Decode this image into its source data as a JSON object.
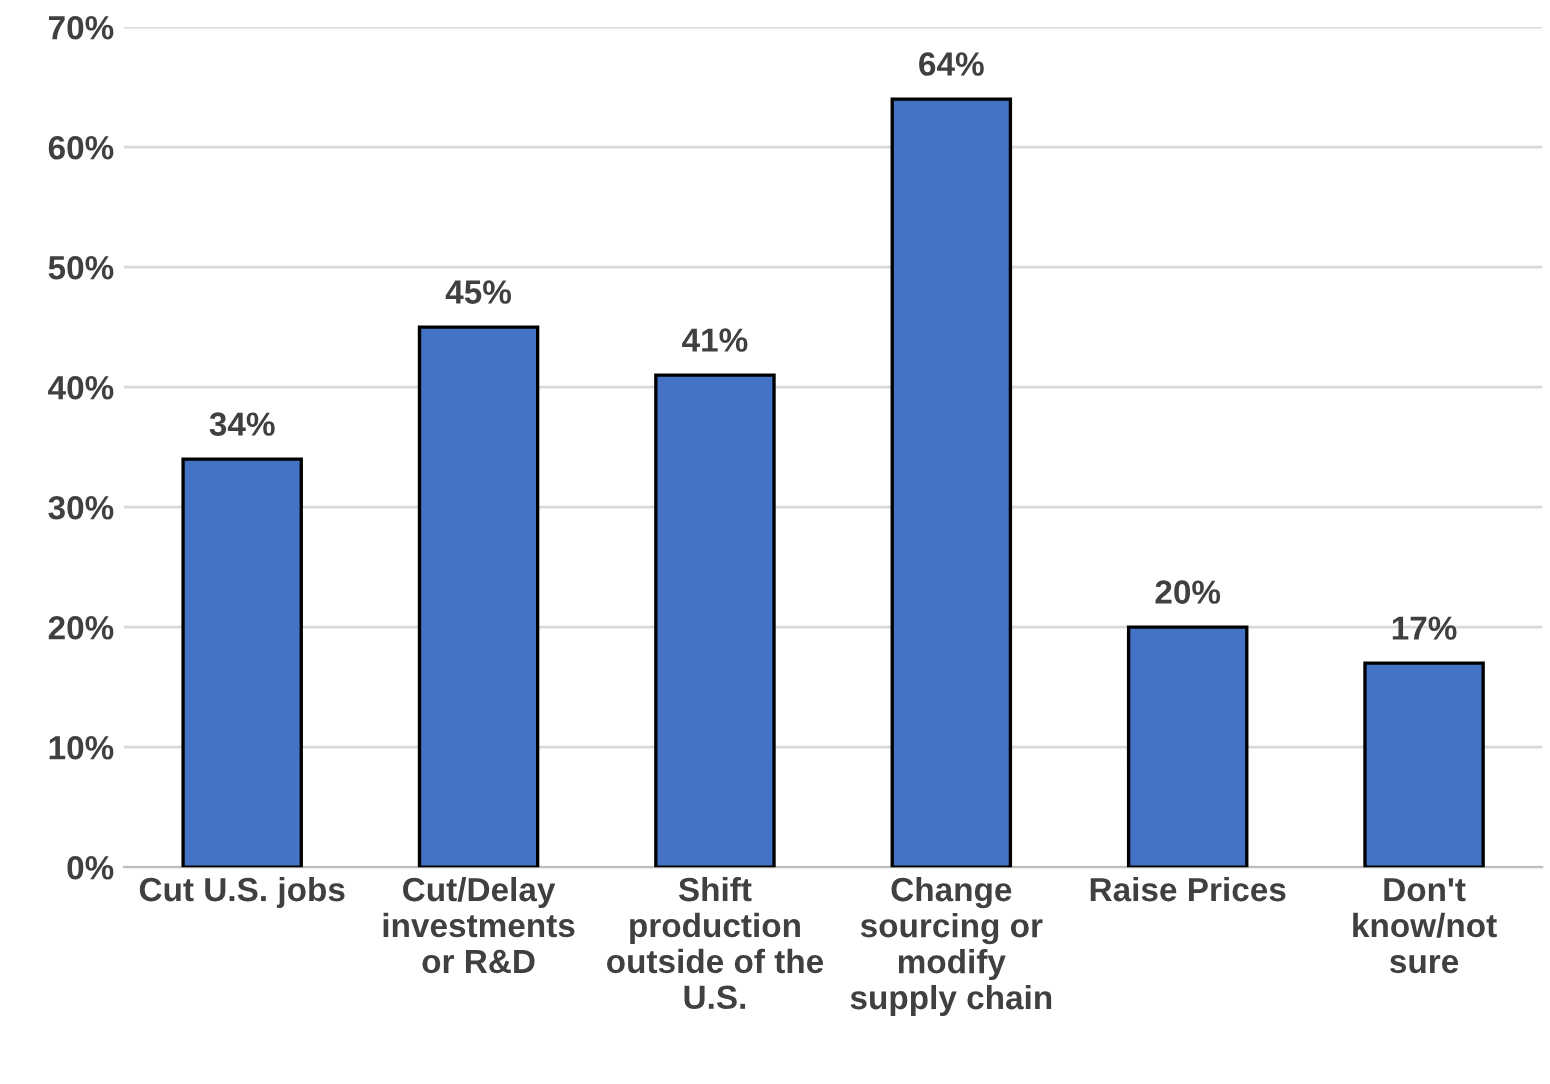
{
  "chart_data": {
    "type": "bar",
    "categories": [
      "Cut U.S. jobs",
      "Cut/Delay\ninvestments\nor R&D",
      "Shift\nproduction\noutside of the\nU.S.",
      "Change\nsourcing or\nmodify\nsupply chain",
      "Raise Prices",
      "Don't\nknow/not\nsure"
    ],
    "values": [
      34,
      45,
      41,
      64,
      20,
      17
    ],
    "value_labels": [
      "34%",
      "45%",
      "41%",
      "64%",
      "20%",
      "17%"
    ],
    "color": "#4472c4",
    "ylim": [
      0,
      70
    ],
    "yticks": [
      {
        "value": 0,
        "label": "0%"
      },
      {
        "value": 10,
        "label": "10%"
      },
      {
        "value": 20,
        "label": "20%"
      },
      {
        "value": 30,
        "label": "30%"
      },
      {
        "value": 40,
        "label": "40%"
      },
      {
        "value": 50,
        "label": "50%"
      },
      {
        "value": 60,
        "label": "60%"
      },
      {
        "value": 70,
        "label": "70%"
      }
    ],
    "grid": "y",
    "legend": false
  }
}
